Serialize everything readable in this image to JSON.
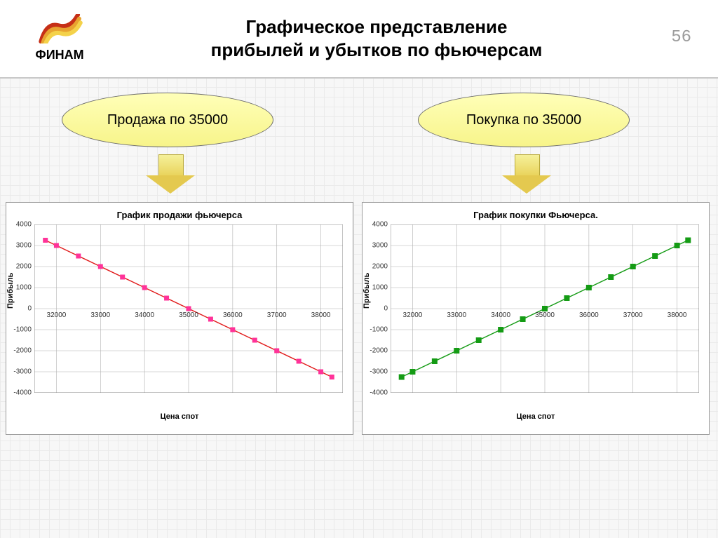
{
  "logo_text": "ФИНАМ",
  "title_line1": "Графическое представление",
  "title_line2": "прибылей и убытков по фьючерсам",
  "slide_number": "56",
  "columns": [
    {
      "bubble": "Продажа по 35000",
      "chart": {
        "type": "line",
        "title": "График продажи фьючерса",
        "xlabel": "Цена спот",
        "ylabel": "Прибыль",
        "xlim": [
          31500,
          38500
        ],
        "ylim": [
          -4000,
          4000
        ],
        "xticks": [
          32000,
          33000,
          34000,
          35000,
          36000,
          37000,
          38000
        ],
        "yticks": [
          -4000,
          -3000,
          -2000,
          -1000,
          0,
          1000,
          2000,
          3000,
          4000
        ],
        "x": [
          31750,
          32000,
          32500,
          33000,
          33500,
          34000,
          34500,
          35000,
          35500,
          36000,
          36500,
          37000,
          37500,
          38000,
          38250
        ],
        "y": [
          3250,
          3000,
          2500,
          2000,
          1500,
          1000,
          500,
          0,
          -500,
          -1000,
          -1500,
          -2000,
          -2500,
          -3000,
          -3250
        ],
        "line_color": "#e11b1b",
        "marker": "square",
        "marker_color": "#ff3399",
        "marker_size": 6,
        "line_width": 1.5,
        "grid_color": "#b0b0b0",
        "background": "#ffffff",
        "tick_fontsize": 10,
        "label_fontsize": 11,
        "title_fontsize": 13
      }
    },
    {
      "bubble": "Покупка по 35000",
      "chart": {
        "type": "line",
        "title": "График покупки Фьючерса.",
        "xlabel": "Цена спот",
        "ylabel": "Прибыль",
        "xlim": [
          31500,
          38500
        ],
        "ylim": [
          -4000,
          4000
        ],
        "xticks": [
          32000,
          33000,
          34000,
          35000,
          36000,
          37000,
          38000
        ],
        "yticks": [
          -4000,
          -3000,
          -2000,
          -1000,
          0,
          1000,
          2000,
          3000,
          4000
        ],
        "x": [
          31750,
          32000,
          32500,
          33000,
          33500,
          34000,
          34500,
          35000,
          35500,
          36000,
          36500,
          37000,
          37500,
          38000,
          38250
        ],
        "y": [
          -3250,
          -3000,
          -2500,
          -2000,
          -1500,
          -1000,
          -500,
          0,
          500,
          1000,
          1500,
          2000,
          2500,
          3000,
          3250
        ],
        "line_color": "#149b14",
        "marker": "square",
        "marker_color": "#149b14",
        "marker_size": 7,
        "line_width": 1.5,
        "grid_color": "#b0b0b0",
        "background": "#ffffff",
        "tick_fontsize": 10,
        "label_fontsize": 11,
        "title_fontsize": 13
      }
    }
  ],
  "logo_colors": {
    "stripe_dark": "#c62f16",
    "stripe_mid": "#e8a330",
    "stripe_light": "#f4d24a"
  }
}
